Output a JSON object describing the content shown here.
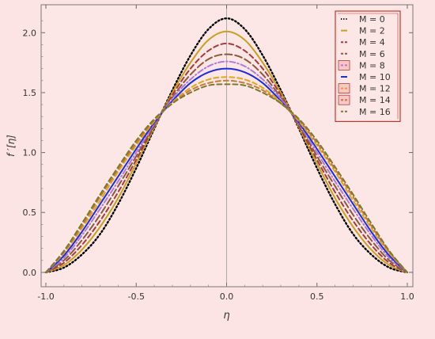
{
  "chart_data": {
    "type": "line",
    "xlabel": "η",
    "ylabel": "f ′[η]",
    "xlim": [
      -1.0,
      1.0
    ],
    "ylim": [
      -0.08,
      2.22
    ],
    "x_ticks": [
      "-1.0",
      "-0.5",
      "0.0",
      "0.5",
      "1.0"
    ],
    "x_tick_values": [
      -1.0,
      -0.5,
      0.0,
      0.5,
      1.0
    ],
    "y_ticks": [
      "0.0",
      "0.5",
      "1.0",
      "1.5",
      "2.0"
    ],
    "y_tick_values": [
      0.0,
      0.5,
      1.0,
      1.5,
      2.0
    ],
    "grid": false,
    "legend_position": "top-right",
    "x": [
      -1.0,
      -0.9,
      -0.8,
      -0.7,
      -0.6,
      -0.5,
      -0.4,
      -0.3,
      -0.2,
      -0.1,
      0.0,
      0.1,
      0.2,
      0.3,
      0.4,
      0.5,
      0.6,
      0.7,
      0.8,
      0.9,
      1.0
    ],
    "series": [
      {
        "name": "M = 0",
        "color": "#000000",
        "dash": "dot",
        "values": [
          0.0,
          0.04,
          0.15,
          0.32,
          0.57,
          0.87,
          1.2,
          1.52,
          1.81,
          2.03,
          2.12,
          2.03,
          1.81,
          1.52,
          1.2,
          0.87,
          0.57,
          0.32,
          0.15,
          0.04,
          0.0
        ]
      },
      {
        "name": "M = 2",
        "color": "#c8a020",
        "dash": "solid",
        "values": [
          0.0,
          0.06,
          0.19,
          0.38,
          0.62,
          0.91,
          1.21,
          1.5,
          1.75,
          1.94,
          2.01,
          1.94,
          1.75,
          1.5,
          1.21,
          0.91,
          0.62,
          0.38,
          0.19,
          0.06,
          0.0
        ]
      },
      {
        "name": "M = 4",
        "color": "#a83a3a",
        "dash": "dash",
        "values": [
          0.0,
          0.08,
          0.23,
          0.43,
          0.67,
          0.94,
          1.22,
          1.48,
          1.7,
          1.85,
          1.91,
          1.85,
          1.7,
          1.48,
          1.22,
          0.94,
          0.67,
          0.43,
          0.23,
          0.08,
          0.0
        ]
      },
      {
        "name": "M = 6",
        "color": "#8a5a3a",
        "dash": "longdash",
        "values": [
          0.0,
          0.1,
          0.27,
          0.48,
          0.72,
          0.97,
          1.23,
          1.46,
          1.65,
          1.78,
          1.82,
          1.78,
          1.65,
          1.46,
          1.23,
          0.97,
          0.72,
          0.48,
          0.27,
          0.1,
          0.0
        ]
      },
      {
        "name": "M = 8",
        "color": "#b07ad8",
        "dash": "dashdot",
        "values": [
          0.0,
          0.12,
          0.31,
          0.53,
          0.76,
          1.0,
          1.24,
          1.45,
          1.61,
          1.72,
          1.76,
          1.72,
          1.61,
          1.45,
          1.24,
          1.0,
          0.76,
          0.53,
          0.31,
          0.12,
          0.0
        ]
      },
      {
        "name": "M = 10",
        "color": "#1a2ee0",
        "dash": "solid",
        "values": [
          0.0,
          0.14,
          0.34,
          0.57,
          0.8,
          1.03,
          1.25,
          1.43,
          1.58,
          1.67,
          1.7,
          1.67,
          1.58,
          1.43,
          1.25,
          1.03,
          0.8,
          0.57,
          0.34,
          0.14,
          0.0
        ]
      },
      {
        "name": "M = 12",
        "color": "#e0a818",
        "dash": "dash",
        "values": [
          0.0,
          0.16,
          0.37,
          0.6,
          0.84,
          1.06,
          1.26,
          1.42,
          1.54,
          1.61,
          1.63,
          1.61,
          1.54,
          1.42,
          1.26,
          1.06,
          0.84,
          0.6,
          0.37,
          0.16,
          0.0
        ]
      },
      {
        "name": "M = 14",
        "color": "#c87a3a",
        "dash": "dash",
        "values": [
          0.0,
          0.17,
          0.39,
          0.63,
          0.86,
          1.08,
          1.27,
          1.41,
          1.52,
          1.58,
          1.6,
          1.58,
          1.52,
          1.41,
          1.27,
          1.08,
          0.86,
          0.63,
          0.39,
          0.17,
          0.0
        ]
      },
      {
        "name": "M = 16",
        "color": "#7a7a2a",
        "dash": "dash",
        "values": [
          0.0,
          0.18,
          0.41,
          0.65,
          0.88,
          1.1,
          1.28,
          1.41,
          1.5,
          1.56,
          1.57,
          1.56,
          1.5,
          1.41,
          1.28,
          1.1,
          0.88,
          0.65,
          0.41,
          0.18,
          0.0
        ]
      }
    ]
  }
}
